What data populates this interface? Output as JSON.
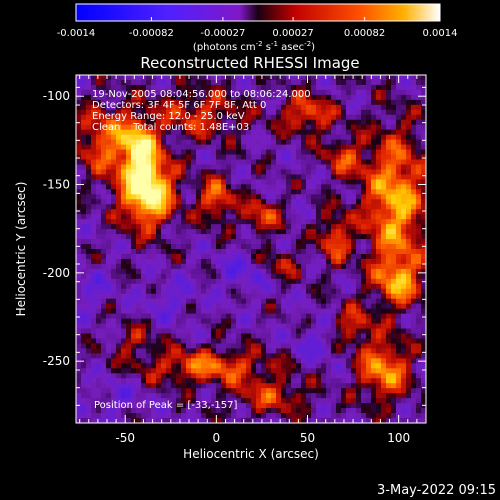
{
  "colorbar": {
    "tick_labels": [
      "-0.0014",
      "-0.00082",
      "-0.00027",
      "0.00027",
      "0.00082",
      "0.0014"
    ],
    "tick_values": [
      -0.0014,
      -0.00082,
      -0.00027,
      0.00027,
      0.00082,
      0.0014
    ],
    "range": [
      -0.0014,
      0.0014
    ],
    "unit_label_parts": [
      "(photons cm",
      "-2",
      " s",
      "-1",
      " asec",
      "-2",
      ")"
    ]
  },
  "annotations": {
    "time_range": "19-Nov-2005 08:04:56.000 to 08:06:24.000",
    "detectors": "Detectors: 3F 4F 5F 6F 7F 8F, Att 0",
    "energy_range": "Energy Range: 12.0 - 25.0 keV",
    "method_counts": "Clean    Total counts: 1.48E+03",
    "peak_position": "Position of Peak = [-33,-157]"
  },
  "footer": {
    "date": "3-May-2022 09:15"
  },
  "colors": {
    "axes": "#ffffff",
    "background": "#000000",
    "low": "#1a1aff",
    "mid": "#7a1ec8",
    "high": "#ff2a00",
    "peak": "#ffffd0"
  },
  "chart_data": {
    "type": "heatmap",
    "title": "Reconstructed RHESSI Image",
    "xlabel": "Heliocentric X (arcsec)",
    "ylabel": "Heliocentric Y (arcsec)",
    "xlim": [
      -77,
      115
    ],
    "ylim": [
      -285,
      -88
    ],
    "x_ticks": [
      -50,
      0,
      50,
      100
    ],
    "x_tick_labels": [
      "-50",
      "0",
      "50",
      "100"
    ],
    "y_ticks": [
      -100,
      -150,
      -200,
      -250
    ],
    "y_tick_labels": [
      "-100",
      "-150",
      "-200",
      "-250"
    ],
    "grid": false,
    "colormap": "rainbow-to-hot (blue / purple negative, red / yellow / white positive)",
    "peak": {
      "x": -33,
      "y": -157
    },
    "blobs": [
      {
        "x": -38,
        "y": -153,
        "sx": 10,
        "sy": 14,
        "v": 1.55
      },
      {
        "x": -42,
        "y": -128,
        "sx": 6,
        "sy": 10,
        "v": 0.9
      },
      {
        "x": -60,
        "y": -125,
        "sx": 12,
        "sy": 14,
        "v": 0.75
      },
      {
        "x": -10,
        "y": -110,
        "sx": 18,
        "sy": 10,
        "v": 0.55
      },
      {
        "x": 0,
        "y": -158,
        "sx": 7,
        "sy": 9,
        "v": 0.75
      },
      {
        "x": 25,
        "y": -168,
        "sx": 7,
        "sy": 7,
        "v": 0.65
      },
      {
        "x": 50,
        "y": -110,
        "sx": 10,
        "sy": 8,
        "v": 0.7
      },
      {
        "x": 35,
        "y": -195,
        "sx": 8,
        "sy": 6,
        "v": 0.45
      },
      {
        "x": 70,
        "y": -135,
        "sx": 8,
        "sy": 8,
        "v": 0.55
      },
      {
        "x": 65,
        "y": -180,
        "sx": 6,
        "sy": 10,
        "v": 0.7
      },
      {
        "x": 98,
        "y": -160,
        "sx": 12,
        "sy": 28,
        "v": 1.0
      },
      {
        "x": 100,
        "y": -205,
        "sx": 9,
        "sy": 10,
        "v": 0.75
      },
      {
        "x": 92,
        "y": -255,
        "sx": 10,
        "sy": 12,
        "v": 0.9
      },
      {
        "x": 75,
        "y": -230,
        "sx": 8,
        "sy": 8,
        "v": 0.55
      },
      {
        "x": -5,
        "y": -253,
        "sx": 25,
        "sy": 7,
        "v": 0.75
      },
      {
        "x": 30,
        "y": -270,
        "sx": 15,
        "sy": 7,
        "v": 0.55
      },
      {
        "x": -45,
        "y": -238,
        "sx": 8,
        "sy": 6,
        "v": 0.4
      },
      {
        "x": -70,
        "y": -210,
        "sx": 8,
        "sy": 8,
        "v": -0.3
      },
      {
        "x": 15,
        "y": -200,
        "sx": 10,
        "sy": 8,
        "v": -0.35
      },
      {
        "x": -25,
        "y": -215,
        "sx": 10,
        "sy": 8,
        "v": -0.3
      },
      {
        "x": 55,
        "y": -240,
        "sx": 10,
        "sy": 8,
        "v": -0.3
      },
      {
        "x": -55,
        "y": -270,
        "sx": 10,
        "sy": 8,
        "v": -0.25
      }
    ]
  }
}
